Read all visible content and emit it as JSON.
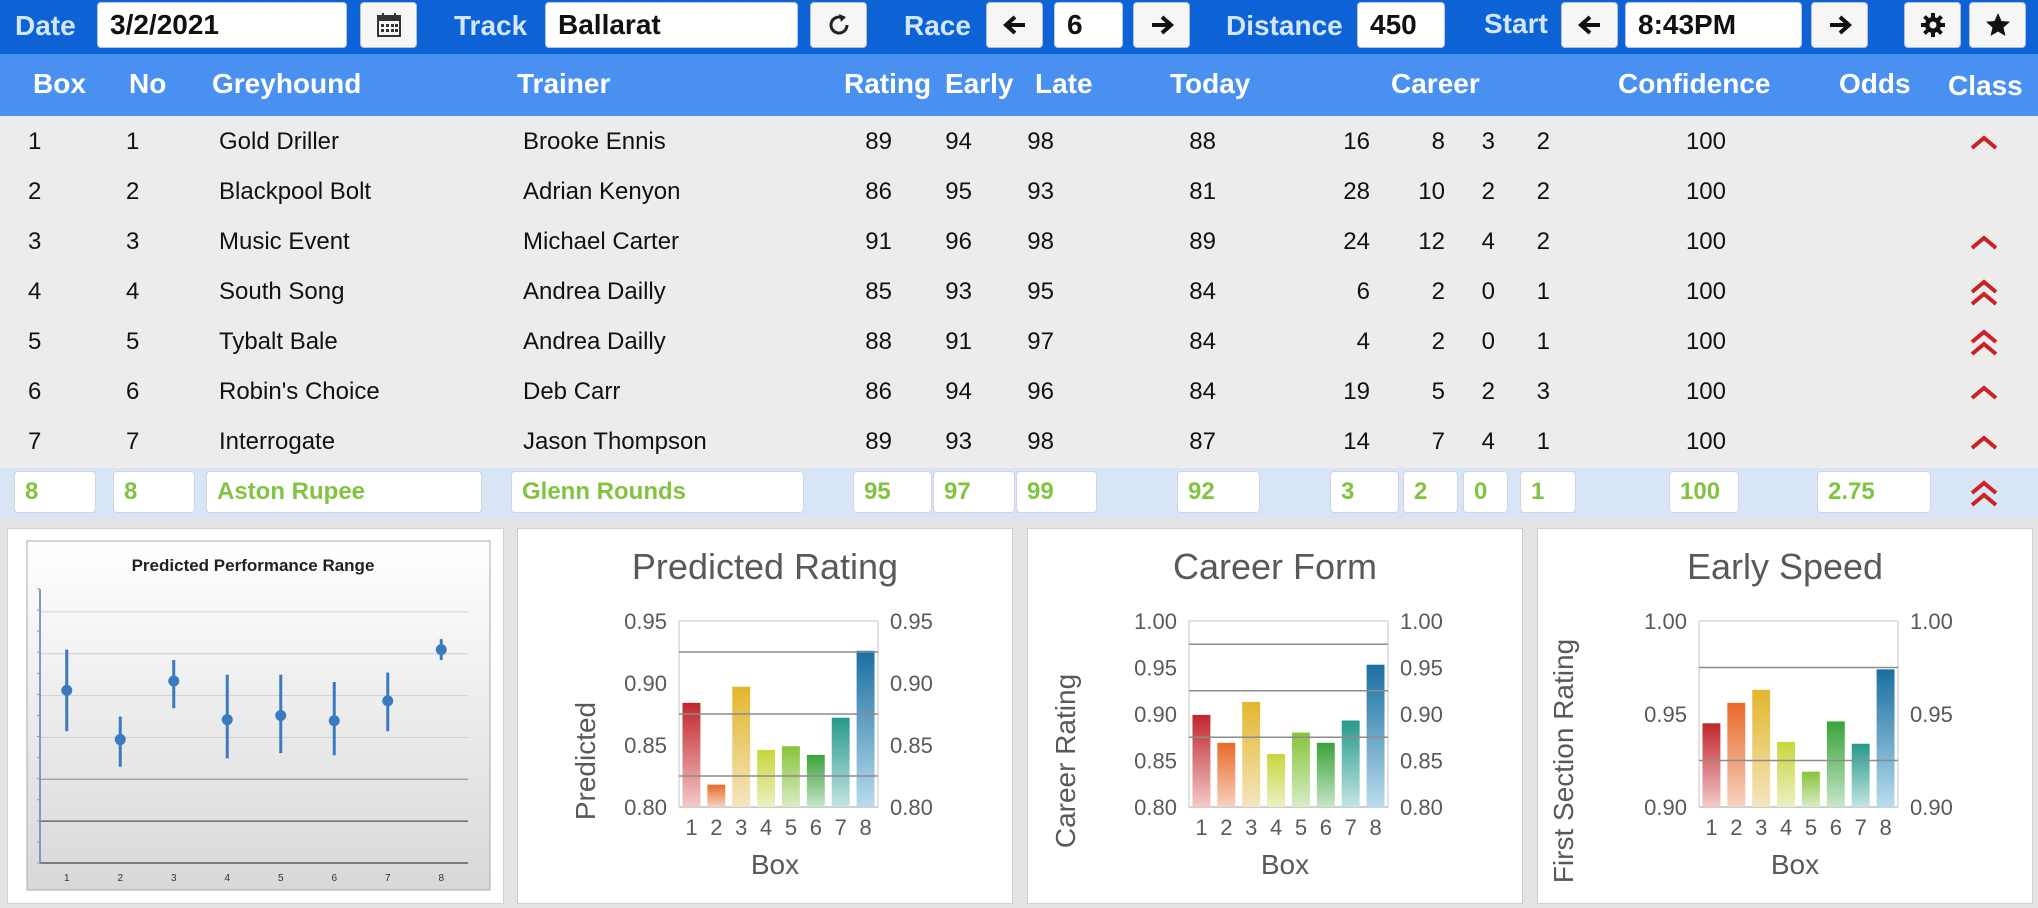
{
  "toolbar": {
    "date_label": "Date",
    "date_value": "3/2/2021",
    "track_label": "Track",
    "track_value": "Ballarat",
    "race_label": "Race",
    "race_value": "6",
    "distance_label": "Distance",
    "distance_value": "450",
    "start_label": "Start",
    "start_value": "8:43PM",
    "icons": [
      "calendar-icon",
      "refresh-icon",
      "arrow-left-icon",
      "arrow-right-icon",
      "gear-icon",
      "star-icon"
    ]
  },
  "table": {
    "headers": {
      "box": "Box",
      "no": "No",
      "greyhound": "Greyhound",
      "trainer": "Trainer",
      "rating": "Rating",
      "early": "Early",
      "late": "Late",
      "today": "Today",
      "career": "Career",
      "confidence": "Confidence",
      "odds": "Odds",
      "class": "Class"
    },
    "rows": [
      {
        "box": "1",
        "no": "1",
        "greyhound": "Gold Driller",
        "trainer": "Brooke Ennis",
        "rating": "89",
        "early": "94",
        "late": "98",
        "today": "88",
        "starts": "16",
        "wins": "8",
        "seconds": "3",
        "thirds": "2",
        "confidence": "100",
        "odds": "",
        "class": "up"
      },
      {
        "box": "2",
        "no": "2",
        "greyhound": "Blackpool Bolt",
        "trainer": "Adrian Kenyon",
        "rating": "86",
        "early": "95",
        "late": "93",
        "today": "81",
        "starts": "28",
        "wins": "10",
        "seconds": "2",
        "thirds": "2",
        "confidence": "100",
        "odds": "",
        "class": "none"
      },
      {
        "box": "3",
        "no": "3",
        "greyhound": "Music Event",
        "trainer": "Michael Carter",
        "rating": "91",
        "early": "96",
        "late": "98",
        "today": "89",
        "starts": "24",
        "wins": "12",
        "seconds": "4",
        "thirds": "2",
        "confidence": "100",
        "odds": "",
        "class": "up"
      },
      {
        "box": "4",
        "no": "4",
        "greyhound": "South Song",
        "trainer": "Andrea Dailly",
        "rating": "85",
        "early": "93",
        "late": "95",
        "today": "84",
        "starts": "6",
        "wins": "2",
        "seconds": "0",
        "thirds": "1",
        "confidence": "100",
        "odds": "",
        "class": "double-up"
      },
      {
        "box": "5",
        "no": "5",
        "greyhound": "Tybalt Bale",
        "trainer": "Andrea Dailly",
        "rating": "88",
        "early": "91",
        "late": "97",
        "today": "84",
        "starts": "4",
        "wins": "2",
        "seconds": "0",
        "thirds": "1",
        "confidence": "100",
        "odds": "",
        "class": "double-up"
      },
      {
        "box": "6",
        "no": "6",
        "greyhound": "Robin's Choice",
        "trainer": "Deb Carr",
        "rating": "86",
        "early": "94",
        "late": "96",
        "today": "84",
        "starts": "19",
        "wins": "5",
        "seconds": "2",
        "thirds": "3",
        "confidence": "100",
        "odds": "",
        "class": "up"
      },
      {
        "box": "7",
        "no": "7",
        "greyhound": "Interrogate",
        "trainer": "Jason Thompson",
        "rating": "89",
        "early": "93",
        "late": "98",
        "today": "87",
        "starts": "14",
        "wins": "7",
        "seconds": "4",
        "thirds": "1",
        "confidence": "100",
        "odds": "",
        "class": "up"
      }
    ],
    "selected": {
      "box": "8",
      "no": "8",
      "greyhound": "Aston Rupee",
      "trainer": "Glenn Rounds",
      "rating": "95",
      "early": "97",
      "late": "99",
      "today": "92",
      "starts": "3",
      "wins": "2",
      "seconds": "0",
      "thirds": "1",
      "confidence": "100",
      "odds": "2.75",
      "class": "double-up"
    }
  },
  "colors": {
    "topbar": "#0d62d6",
    "header": "#4a90f0",
    "selected_text": "#82c341",
    "class_arrow": "#cc2222"
  },
  "chart_data": [
    {
      "type": "scatter",
      "title": "Predicted Performance Range",
      "categories": [
        "1",
        "2",
        "3",
        "4",
        "5",
        "6",
        "7",
        "8"
      ],
      "series": [
        {
          "values": [
            0.885,
            0.838,
            0.894,
            0.857,
            0.861,
            0.856,
            0.875,
            0.924
          ],
          "low": [
            0.846,
            0.812,
            0.868,
            0.82,
            0.825,
            0.823,
            0.846,
            0.914
          ],
          "high": [
            0.924,
            0.86,
            0.914,
            0.9,
            0.9,
            0.893,
            0.902,
            0.934
          ]
        }
      ],
      "ylim": [
        0.72,
        0.98
      ],
      "grid": true
    },
    {
      "type": "bar",
      "title": "Predicted Rating",
      "xlabel": "Box",
      "ylabel": "Predicted",
      "categories": [
        "1",
        "2",
        "3",
        "4",
        "5",
        "6",
        "7",
        "8"
      ],
      "values": [
        0.884,
        0.818,
        0.897,
        0.846,
        0.849,
        0.842,
        0.872,
        0.926
      ],
      "ylim": [
        0.8,
        0.95
      ],
      "yticks": [
        "0.80",
        "0.85",
        "0.90",
        "0.95"
      ],
      "gridlines": [
        0.825,
        0.875,
        0.925
      ]
    },
    {
      "type": "bar",
      "title": "Career Form",
      "xlabel": "Box",
      "ylabel": "Career Rating",
      "categories": [
        "1",
        "2",
        "3",
        "4",
        "5",
        "6",
        "7",
        "8"
      ],
      "values": [
        0.899,
        0.869,
        0.913,
        0.857,
        0.88,
        0.869,
        0.893,
        0.953
      ],
      "ylim": [
        0.8,
        1.0
      ],
      "yticks": [
        "0.80",
        "0.85",
        "0.90",
        "0.95",
        "1.00"
      ],
      "gridlines": [
        0.875,
        0.925,
        0.975
      ]
    },
    {
      "type": "bar",
      "title": "Early Speed",
      "xlabel": "Box",
      "ylabel": "First Section Rating",
      "categories": [
        "1",
        "2",
        "3",
        "4",
        "5",
        "6",
        "7",
        "8"
      ],
      "values": [
        0.945,
        0.956,
        0.963,
        0.935,
        0.919,
        0.946,
        0.934,
        0.974
      ],
      "ylim": [
        0.9,
        1.0
      ],
      "yticks": [
        "0.90",
        "0.95",
        "1.00"
      ],
      "gridlines": [
        0.925,
        0.975
      ]
    }
  ]
}
